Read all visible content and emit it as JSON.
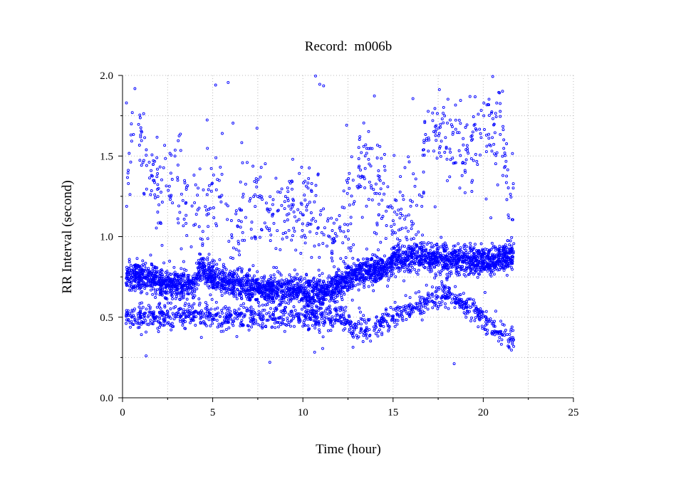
{
  "chart_data": {
    "type": "scatter",
    "title": "Record:  m006b",
    "xlabel": "Time (hour)",
    "ylabel": "RR Interval (second)",
    "xlim": [
      0,
      25
    ],
    "ylim": [
      0.0,
      2.0
    ],
    "xticks": [
      0,
      5,
      10,
      15,
      20,
      25
    ],
    "xtick_labels": [
      "0",
      "5",
      "10",
      "15",
      "20",
      "25"
    ],
    "yticks": [
      0.0,
      0.5,
      1.0,
      1.5,
      2.0
    ],
    "ytick_labels": [
      "0.0",
      "0.5",
      "1.0",
      "1.5",
      "2.0"
    ],
    "grid": true,
    "marker": "open-circle",
    "color": "#0000ff",
    "series": [
      {
        "name": "",
        "band": [
          {
            "x": 0.2,
            "y": 0.74
          },
          {
            "x": 1.0,
            "y": 0.75
          },
          {
            "x": 2.0,
            "y": 0.72
          },
          {
            "x": 3.0,
            "y": 0.7
          },
          {
            "x": 4.0,
            "y": 0.7
          },
          {
            "x": 4.3,
            "y": 0.82
          },
          {
            "x": 5.0,
            "y": 0.74
          },
          {
            "x": 6.0,
            "y": 0.72
          },
          {
            "x": 7.0,
            "y": 0.69
          },
          {
            "x": 8.0,
            "y": 0.67
          },
          {
            "x": 9.0,
            "y": 0.68
          },
          {
            "x": 10.0,
            "y": 0.66
          },
          {
            "x": 11.0,
            "y": 0.65
          },
          {
            "x": 12.0,
            "y": 0.7
          },
          {
            "x": 13.0,
            "y": 0.78
          },
          {
            "x": 14.0,
            "y": 0.8
          },
          {
            "x": 14.6,
            "y": 0.8
          },
          {
            "x": 15.0,
            "y": 0.86
          },
          {
            "x": 16.0,
            "y": 0.88
          },
          {
            "x": 17.0,
            "y": 0.87
          },
          {
            "x": 18.0,
            "y": 0.86
          },
          {
            "x": 19.0,
            "y": 0.85
          },
          {
            "x": 20.0,
            "y": 0.85
          },
          {
            "x": 20.5,
            "y": 0.84
          },
          {
            "x": 21.0,
            "y": 0.87
          },
          {
            "x": 21.7,
            "y": 0.88
          }
        ],
        "upper_cloud": [
          {
            "x": 0.3,
            "y": 1.38
          },
          {
            "x": 0.5,
            "y": 1.55
          },
          {
            "x": 0.7,
            "y": 1.9
          },
          {
            "x": 1.2,
            "y": 1.45
          },
          {
            "x": 1.5,
            "y": 1.3
          },
          {
            "x": 2.0,
            "y": 1.4
          },
          {
            "x": 2.5,
            "y": 1.35
          },
          {
            "x": 3.0,
            "y": 1.3
          },
          {
            "x": 4.5,
            "y": 1.1
          },
          {
            "x": 5.0,
            "y": 1.2
          },
          {
            "x": 5.5,
            "y": 1.3
          },
          {
            "x": 6.0,
            "y": 1.0
          },
          {
            "x": 7.0,
            "y": 1.2
          },
          {
            "x": 7.5,
            "y": 1.25
          },
          {
            "x": 8.0,
            "y": 1.1
          },
          {
            "x": 9.0,
            "y": 1.15
          },
          {
            "x": 10.5,
            "y": 1.2
          },
          {
            "x": 11.5,
            "y": 0.95
          },
          {
            "x": 12.5,
            "y": 1.1
          },
          {
            "x": 13.5,
            "y": 1.5
          },
          {
            "x": 15.0,
            "y": 1.1
          },
          {
            "x": 16.0,
            "y": 1.05
          },
          {
            "x": 17.0,
            "y": 1.6
          },
          {
            "x": 18.0,
            "y": 1.65
          },
          {
            "x": 19.0,
            "y": 1.55
          },
          {
            "x": 21.0,
            "y": 1.7
          },
          {
            "x": 21.5,
            "y": 1.2
          }
        ],
        "lower_cloud": [
          {
            "x": 0.5,
            "y": 0.5
          },
          {
            "x": 2.0,
            "y": 0.5
          },
          {
            "x": 4.0,
            "y": 0.52
          },
          {
            "x": 6.0,
            "y": 0.5
          },
          {
            "x": 8.0,
            "y": 0.5
          },
          {
            "x": 10.0,
            "y": 0.5
          },
          {
            "x": 12.0,
            "y": 0.5
          },
          {
            "x": 13.0,
            "y": 0.42
          },
          {
            "x": 15.0,
            "y": 0.5
          },
          {
            "x": 16.0,
            "y": 0.55
          },
          {
            "x": 18.0,
            "y": 0.65
          },
          {
            "x": 20.0,
            "y": 0.5
          },
          {
            "x": 21.5,
            "y": 0.35
          }
        ]
      }
    ]
  }
}
